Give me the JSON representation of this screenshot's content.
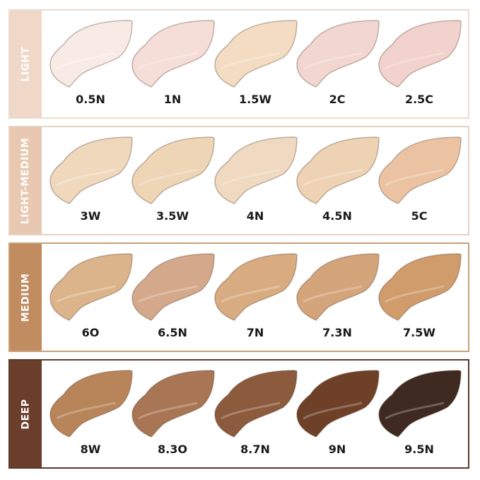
{
  "groups": [
    {
      "name": "LIGHT",
      "strip_color": "#f0d8c8",
      "border_color": "#eadccf",
      "shades": [
        {
          "label": "0.5N",
          "color": "#f8ebe6"
        },
        {
          "label": "1N",
          "color": "#f5ddd8"
        },
        {
          "label": "1.5W",
          "color": "#f3dcc2"
        },
        {
          "label": "2C",
          "color": "#f2d6d0"
        },
        {
          "label": "2.5C",
          "color": "#f2d2cc"
        }
      ]
    },
    {
      "name": "LIGHT-MEDIUM",
      "strip_color": "#e8c8b0",
      "border_color": "#e6d2c0",
      "shades": [
        {
          "label": "3W",
          "color": "#f0d8bc"
        },
        {
          "label": "3.5W",
          "color": "#eed5b6"
        },
        {
          "label": "4N",
          "color": "#efd9c0"
        },
        {
          "label": "4.5N",
          "color": "#eed2b4"
        },
        {
          "label": "5C",
          "color": "#ebc3a2"
        }
      ]
    },
    {
      "name": "MEDIUM",
      "strip_color": "#c08c60",
      "border_color": "#c8a078",
      "shades": [
        {
          "label": "6O",
          "color": "#dcb48c"
        },
        {
          "label": "6.5N",
          "color": "#d4a88a"
        },
        {
          "label": "7N",
          "color": "#d8ac80"
        },
        {
          "label": "7.3N",
          "color": "#d4a47a"
        },
        {
          "label": "7.5W",
          "color": "#d09c6c"
        }
      ]
    },
    {
      "name": "DEEP",
      "strip_color": "#6a3e2a",
      "border_color": "#5a3a2a",
      "shades": [
        {
          "label": "8W",
          "color": "#b8845a"
        },
        {
          "label": "8.3O",
          "color": "#a87654"
        },
        {
          "label": "8.7N",
          "color": "#8c5a3c"
        },
        {
          "label": "9N",
          "color": "#6e4028"
        },
        {
          "label": "9.5N",
          "color": "#3e2a20"
        }
      ]
    }
  ]
}
